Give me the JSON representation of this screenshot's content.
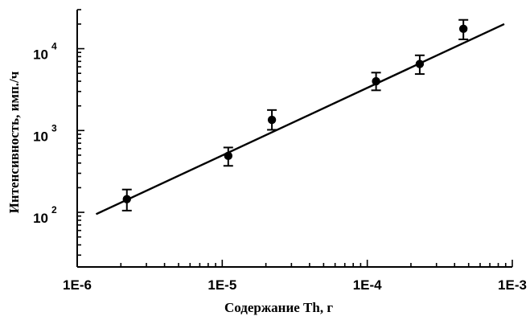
{
  "chart_data": {
    "type": "scatter",
    "xlabel": "Содержание Th, г",
    "ylabel": "Интенсивность, имп./ч",
    "x_scale": "log",
    "y_scale": "log",
    "xlim": [
      1e-06,
      0.001
    ],
    "ylim": [
      21.5,
      30000
    ],
    "grid": false,
    "x_ticks": [
      {
        "value": 1e-06,
        "label": "1E-6"
      },
      {
        "value": 1e-05,
        "label": "1E-5"
      },
      {
        "value": 0.0001,
        "label": "1E-4"
      },
      {
        "value": 0.001,
        "label": "1E-3"
      }
    ],
    "y_ticks": [
      {
        "value": 100,
        "base": "10",
        "exp": "2"
      },
      {
        "value": 1000,
        "base": "10",
        "exp": "3"
      },
      {
        "value": 10000,
        "base": "10",
        "exp": "4"
      }
    ],
    "series": [
      {
        "points": [
          {
            "x": 2.2e-06,
            "y": 145,
            "y_low": 105,
            "y_high": 190
          },
          {
            "x": 1.1e-05,
            "y": 490,
            "y_low": 370,
            "y_high": 620
          },
          {
            "x": 2.2e-05,
            "y": 1350,
            "y_low": 1020,
            "y_high": 1780
          },
          {
            "x": 0.000115,
            "y": 4000,
            "y_low": 3100,
            "y_high": 5100
          },
          {
            "x": 0.00023,
            "y": 6500,
            "y_low": 4900,
            "y_high": 8300
          },
          {
            "x": 0.00046,
            "y": 17500,
            "y_low": 13000,
            "y_high": 22500
          }
        ]
      }
    ],
    "fit_line": {
      "x": [
        1.35e-06,
        0.00088
      ],
      "y": [
        95,
        20000
      ]
    }
  }
}
